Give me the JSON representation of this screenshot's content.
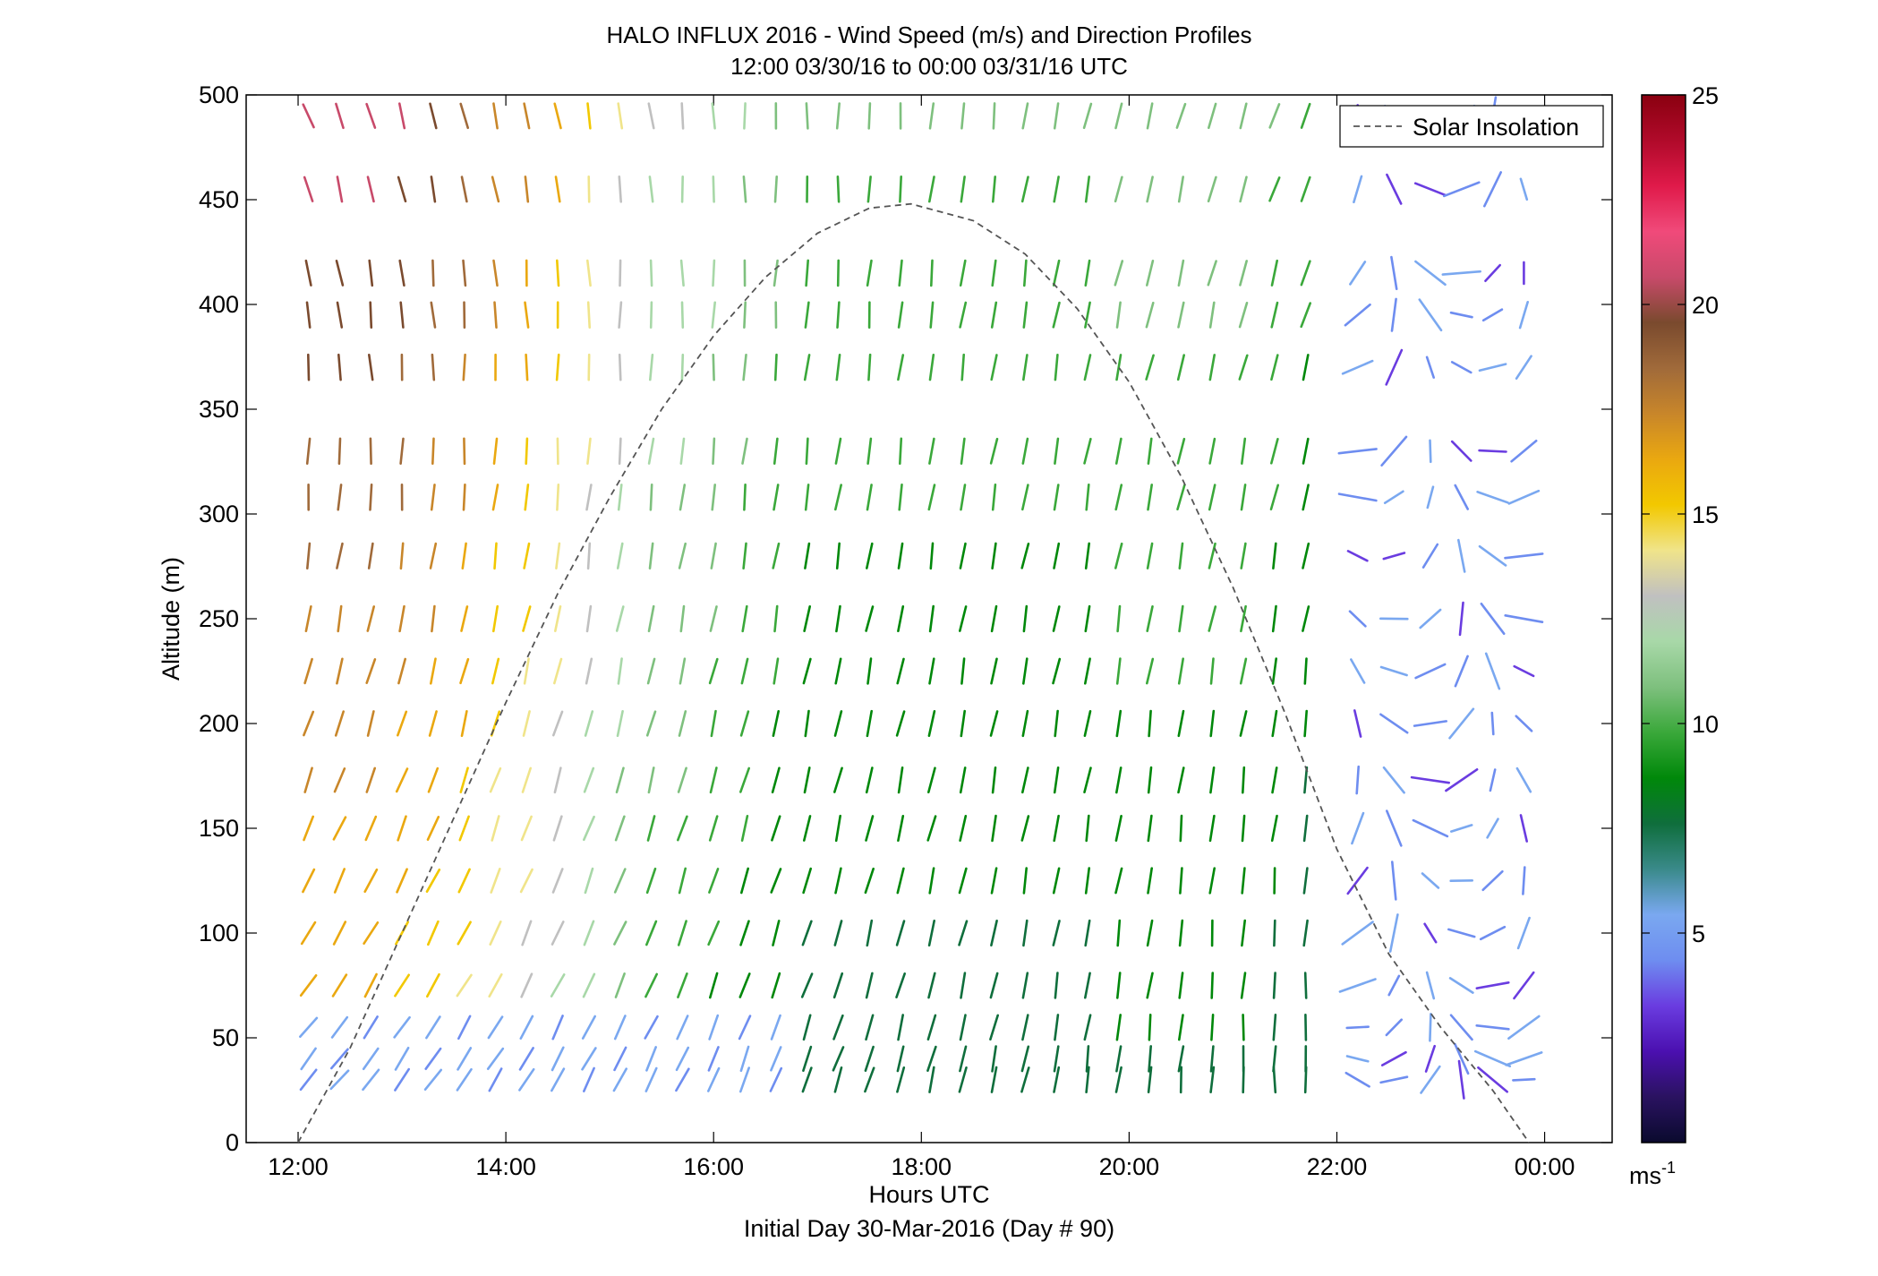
{
  "chart_data": {
    "type": "wind-barb-profile",
    "title": "HALO INFLUX 2016 - Wind Speed (m/s) and Direction Profiles",
    "subtitle": "12:00 03/30/16 to 00:00 03/31/16  UTC",
    "xlabel": "Hours UTC",
    "xlabel_sub": "Initial Day 30-Mar-2016 (Day # 90)",
    "ylabel": "Altitude (m)",
    "xlim": [
      11.5,
      24.65
    ],
    "ylim": [
      0,
      500
    ],
    "x_ticks": [
      12,
      14,
      16,
      18,
      20,
      22,
      24
    ],
    "x_tick_labels": [
      "12:00",
      "14:00",
      "16:00",
      "18:00",
      "20:00",
      "22:00",
      "00:00"
    ],
    "y_ticks": [
      0,
      50,
      100,
      150,
      200,
      250,
      300,
      350,
      400,
      450,
      500
    ],
    "y_tick_labels": [
      "0",
      "50",
      "100",
      "150",
      "200",
      "250",
      "300",
      "350",
      "400",
      "450",
      "500"
    ],
    "legend": {
      "entries": [
        "Solar Insolation"
      ],
      "placement": "top-right"
    },
    "colorbar": {
      "range": [
        0,
        25
      ],
      "ticks": [
        5,
        10,
        15,
        20,
        25
      ],
      "tick_labels": [
        "5",
        "10",
        "15",
        "20",
        "25"
      ],
      "unit_base": "ms",
      "unit_exp": "-1",
      "colors": [
        "#0a0a2e",
        "#2a1260",
        "#4b10b0",
        "#6a3ce0",
        "#6e8df0",
        "#7aa8f0",
        "#3a8a8a",
        "#0f6e3c",
        "#00880a",
        "#3aa83a",
        "#7ec07e",
        "#a8d8a8",
        "#c0c0c0",
        "#f0e48a",
        "#f2c800",
        "#eaa810",
        "#c8862a",
        "#a06a3a",
        "#7a4a2e",
        "#c84a6a",
        "#f04a7a",
        "#e01a4a",
        "#b00a2a",
        "#8a0010"
      ]
    },
    "solar_insolation": {
      "style": "dashed",
      "color": "#555555",
      "x": [
        12.0,
        12.5,
        13.0,
        13.5,
        14.0,
        14.5,
        15.0,
        15.5,
        16.0,
        16.5,
        17.0,
        17.5,
        17.9,
        18.5,
        19.0,
        19.5,
        20.0,
        20.5,
        21.0,
        21.5,
        22.0,
        22.5,
        23.0,
        23.5,
        23.85
      ],
      "y": [
        0,
        45,
        100,
        155,
        210,
        262,
        308,
        350,
        385,
        413,
        434,
        446,
        448,
        440,
        424,
        398,
        363,
        318,
        265,
        205,
        140,
        90,
        55,
        25,
        0
      ]
    },
    "wind": {
      "times": [
        12.1,
        12.4,
        12.7,
        13.0,
        13.3,
        13.6,
        13.9,
        14.2,
        14.5,
        14.8,
        15.1,
        15.4,
        15.7,
        16.0,
        16.3,
        16.6,
        16.9,
        17.2,
        17.5,
        17.8,
        18.1,
        18.4,
        18.7,
        19.0,
        19.3,
        19.6,
        19.9,
        20.2,
        20.5,
        20.8,
        21.1,
        21.4,
        21.7
      ],
      "altitudes": [
        490,
        455,
        415,
        395,
        370,
        330,
        308,
        280,
        250,
        225,
        200,
        173,
        150,
        125,
        100,
        75,
        55,
        40,
        30
      ],
      "speed_by_time": [
        18,
        18,
        18,
        17.5,
        17,
        16.5,
        15.5,
        15,
        14,
        13,
        12,
        11,
        11,
        10.5,
        10,
        9.5,
        9,
        9,
        9,
        9,
        9,
        9,
        9,
        9,
        9,
        9,
        9.5,
        9.5,
        9.5,
        9.5,
        9.5,
        9,
        8.5
      ],
      "late_times": [
        22.2,
        22.55,
        22.9,
        23.2,
        23.5,
        23.8
      ],
      "late_speed": 3.5
    }
  }
}
